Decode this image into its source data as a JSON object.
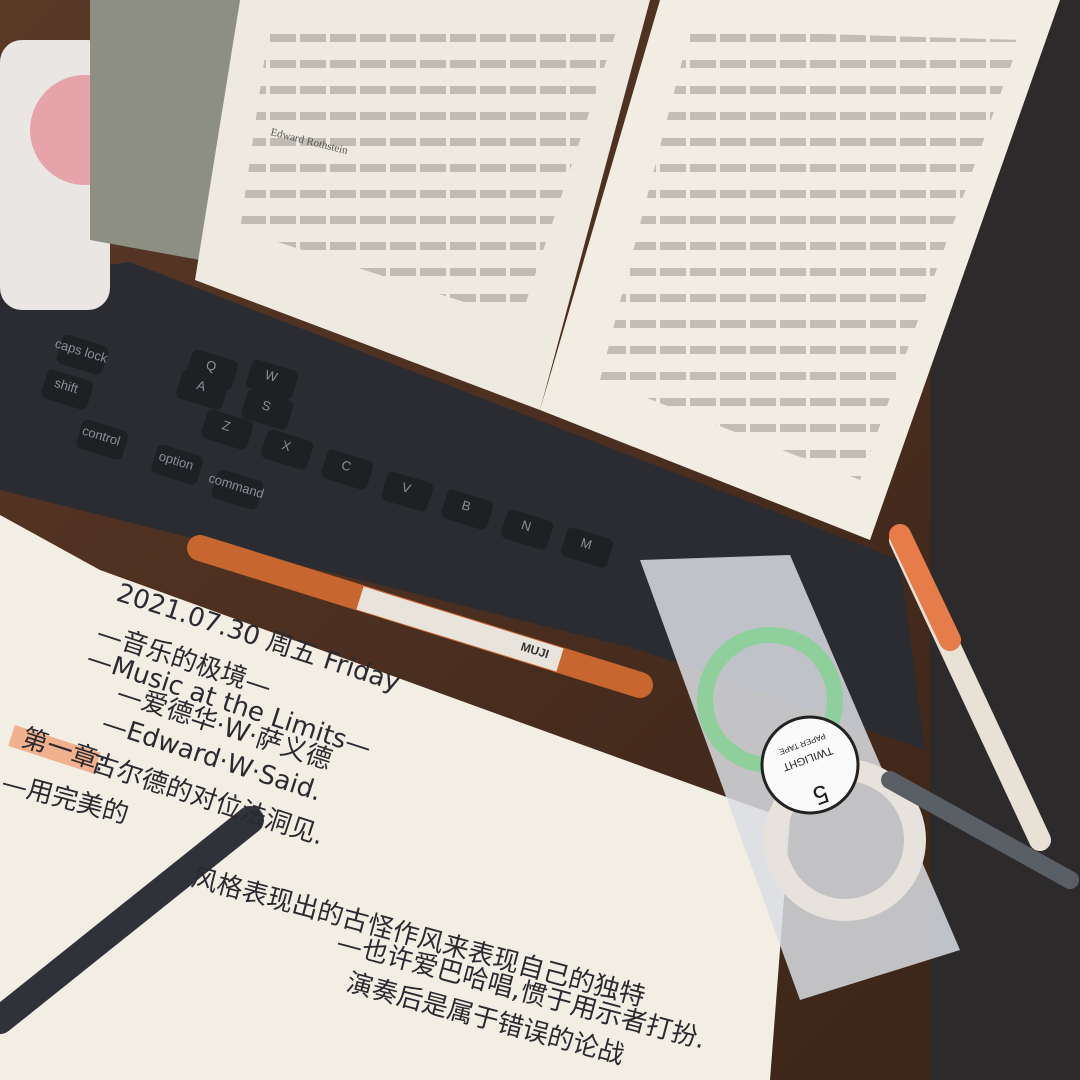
{
  "notebook": {
    "date": "2021.07.30 周五 Friday",
    "lines": [
      "—音乐的极境—",
      "—Music at the Limits—",
      "—爱德华·W·萨义德",
      "—Edward·W·Said."
    ],
    "chapter": "第一章:",
    "chapter_title": "古尔德的对位法洞见.",
    "notes": [
      "—用完美的",
      "风格表现出的古怪作风来表现自己的独特",
      "—也许爱巴哈唱,惯于用示者打扮.",
      "演奏后是属于错误的论战"
    ]
  },
  "keyboard": {
    "keys": [
      "caps lock",
      "shift",
      "control",
      "option",
      "command",
      "Q",
      "W",
      "A",
      "S",
      "Z",
      "X",
      "C",
      "V",
      "B",
      "N",
      "M"
    ]
  },
  "tape": {
    "number": "5",
    "brand": "TWILIGHT",
    "kind": "PAPER TAPE"
  },
  "pen": {
    "brand": "MUJI"
  },
  "book": {
    "note": "Edward Rothstein"
  }
}
